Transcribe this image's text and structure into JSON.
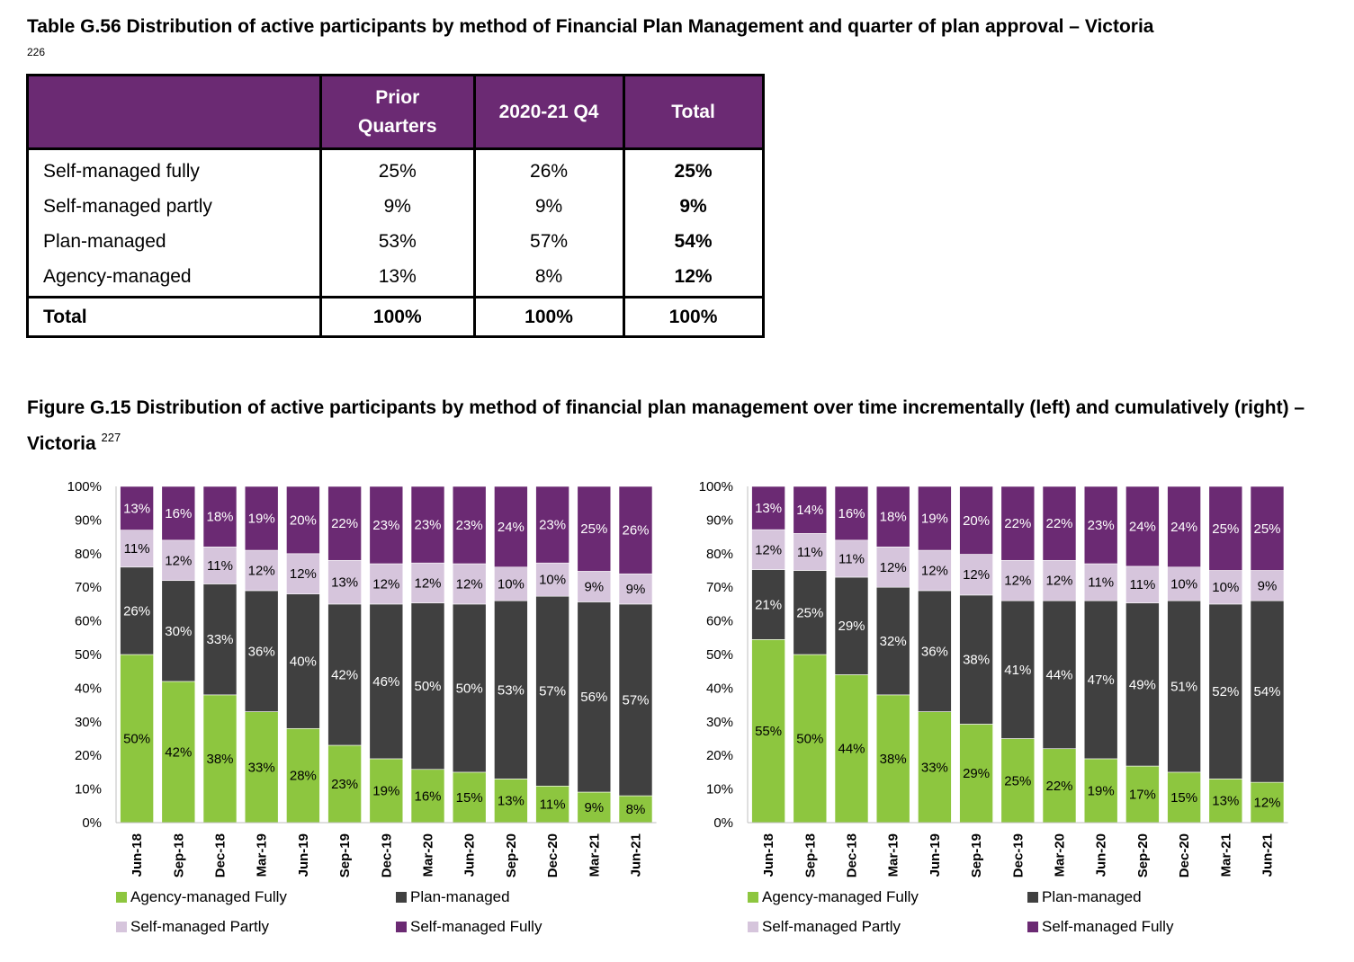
{
  "table": {
    "title": "Table G.56 Distribution of active participants by method of Financial Plan Management and quarter of plan approval – Victoria",
    "footnote": "226",
    "headers": [
      "",
      "Prior Quarters",
      "2020-21 Q4",
      "Total"
    ],
    "rows": [
      {
        "label": "Self-managed fully",
        "prior": "25%",
        "q4": "26%",
        "total": "25%"
      },
      {
        "label": "Self-managed partly",
        "prior": "9%",
        "q4": "9%",
        "total": "9%"
      },
      {
        "label": "Plan-managed",
        "prior": "53%",
        "q4": "57%",
        "total": "54%"
      },
      {
        "label": "Agency-managed",
        "prior": "13%",
        "q4": "8%",
        "total": "12%"
      }
    ],
    "total_row": {
      "label": "Total",
      "prior": "100%",
      "q4": "100%",
      "total": "100%"
    }
  },
  "figure": {
    "title": "Figure G.15 Distribution of active participants by method of financial plan management over time incrementally (left) and cumulatively (right) – Victoria",
    "footnote": "227"
  },
  "colors": {
    "agency": "#8dc63f",
    "plan": "#404040",
    "partly": "#d6c5dc",
    "fully": "#6b2a73"
  },
  "chart_data": [
    {
      "type": "bar",
      "stacked": true,
      "categories": [
        "Jun-18",
        "Sep-18",
        "Dec-18",
        "Mar-19",
        "Jun-19",
        "Sep-19",
        "Dec-19",
        "Mar-20",
        "Jun-20",
        "Sep-20",
        "Dec-20",
        "Mar-21",
        "Jun-21"
      ],
      "series": [
        {
          "name": "Agency-managed Fully",
          "values": [
            50,
            42,
            38,
            33,
            28,
            23,
            19,
            16,
            15,
            13,
            11,
            9,
            8
          ]
        },
        {
          "name": "Plan-managed",
          "values": [
            26,
            30,
            33,
            36,
            40,
            42,
            46,
            50,
            50,
            53,
            57,
            56,
            57
          ]
        },
        {
          "name": "Self-managed Partly",
          "values": [
            11,
            12,
            11,
            12,
            12,
            13,
            12,
            12,
            12,
            10,
            10,
            9,
            9
          ]
        },
        {
          "name": "Self-managed Fully",
          "values": [
            13,
            16,
            18,
            19,
            20,
            22,
            23,
            23,
            23,
            24,
            23,
            25,
            26
          ]
        }
      ],
      "yticks": [
        "0%",
        "10%",
        "20%",
        "30%",
        "40%",
        "50%",
        "60%",
        "70%",
        "80%",
        "90%",
        "100%"
      ],
      "ylim": [
        0,
        100
      ],
      "legend": "bottom"
    },
    {
      "type": "bar",
      "stacked": true,
      "categories": [
        "Jun-18",
        "Sep-18",
        "Dec-18",
        "Mar-19",
        "Jun-19",
        "Sep-19",
        "Dec-19",
        "Mar-20",
        "Jun-20",
        "Sep-20",
        "Dec-20",
        "Mar-21",
        "Jun-21"
      ],
      "series": [
        {
          "name": "Agency-managed Fully",
          "values": [
            55,
            50,
            44,
            38,
            33,
            29,
            25,
            22,
            19,
            17,
            15,
            13,
            12
          ]
        },
        {
          "name": "Plan-managed",
          "values": [
            21,
            25,
            29,
            32,
            36,
            38,
            41,
            44,
            47,
            49,
            51,
            52,
            54
          ]
        },
        {
          "name": "Self-managed Partly",
          "values": [
            12,
            11,
            11,
            12,
            12,
            12,
            12,
            12,
            11,
            11,
            10,
            10,
            9
          ]
        },
        {
          "name": "Self-managed Fully",
          "values": [
            13,
            14,
            16,
            18,
            19,
            20,
            22,
            22,
            23,
            24,
            24,
            25,
            25
          ]
        }
      ],
      "yticks": [
        "0%",
        "10%",
        "20%",
        "30%",
        "40%",
        "50%",
        "60%",
        "70%",
        "80%",
        "90%",
        "100%"
      ],
      "ylim": [
        0,
        100
      ],
      "legend": "bottom"
    }
  ]
}
